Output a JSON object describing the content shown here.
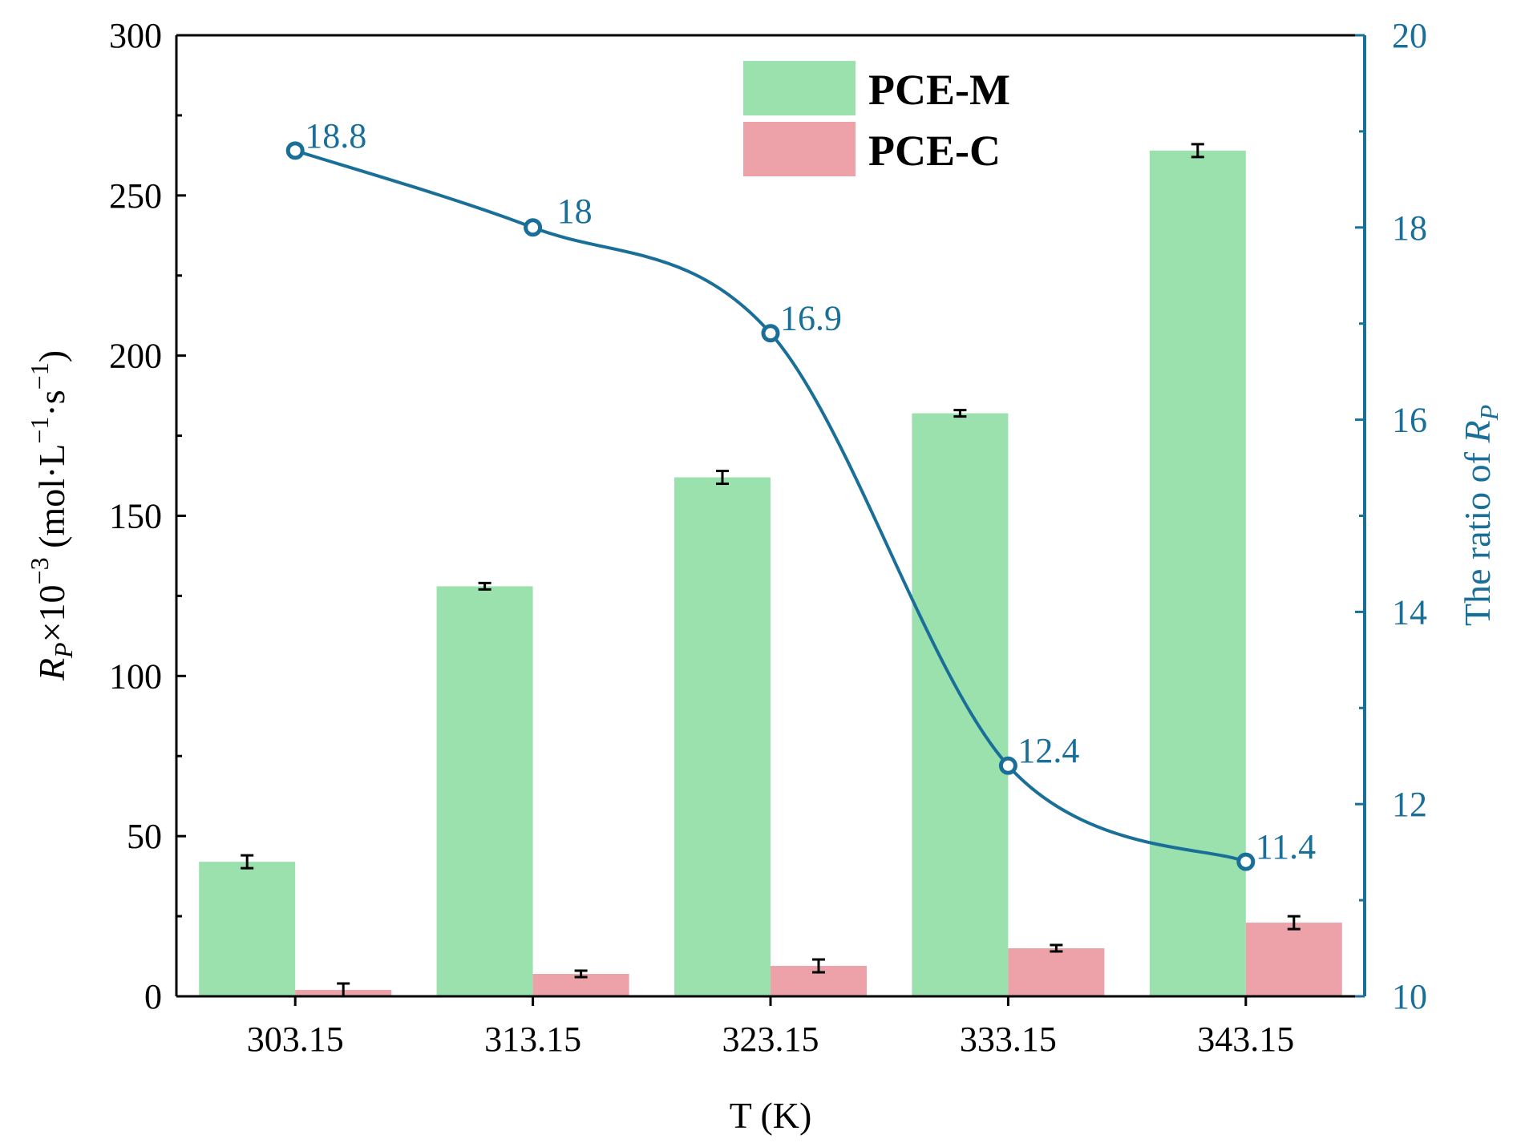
{
  "chart_data": {
    "type": "bar",
    "categories": [
      "303.15",
      "313.15",
      "323.15",
      "333.15",
      "343.15"
    ],
    "series": [
      {
        "name": "PCE-M",
        "values": [
          42,
          128,
          162,
          182,
          264
        ],
        "errors": [
          2,
          1,
          2,
          1,
          2
        ],
        "color": "#9be1ad"
      },
      {
        "name": "PCE-C",
        "values": [
          2,
          7,
          9.5,
          15,
          23
        ],
        "errors": [
          2,
          1,
          2,
          1,
          2
        ],
        "color": "#eda2a9"
      }
    ],
    "line_series": {
      "name": "The ratio of Rp",
      "values": [
        18.8,
        18,
        16.9,
        12.4,
        11.4
      ],
      "labels": [
        "18.8",
        "18",
        "16.9",
        "12.4",
        "11.4"
      ],
      "color": "#1a6f99",
      "axis": "right"
    },
    "xlabel": "T (K)",
    "ylabel_left": {
      "main": "R",
      "sub": "P",
      "mid": "×10",
      "sup1": "−3",
      "unit": " (mol·L",
      "sup2": "−1",
      "dot": "·s",
      "sup3": "−1",
      "close": ")"
    },
    "ylabel_right": {
      "main": "The ratio of ",
      "var": "R",
      "sub": "P"
    },
    "ylim_left": [
      0,
      300
    ],
    "yticks_left": [
      "0",
      "50",
      "100",
      "150",
      "200",
      "250",
      "300"
    ],
    "ylim_right": [
      10,
      20
    ],
    "yticks_right": [
      "10",
      "12",
      "14",
      "16",
      "18",
      "20"
    ],
    "legend": {
      "placement": "top-center",
      "entries": [
        "PCE-M",
        "PCE-C"
      ]
    },
    "grid": false
  }
}
